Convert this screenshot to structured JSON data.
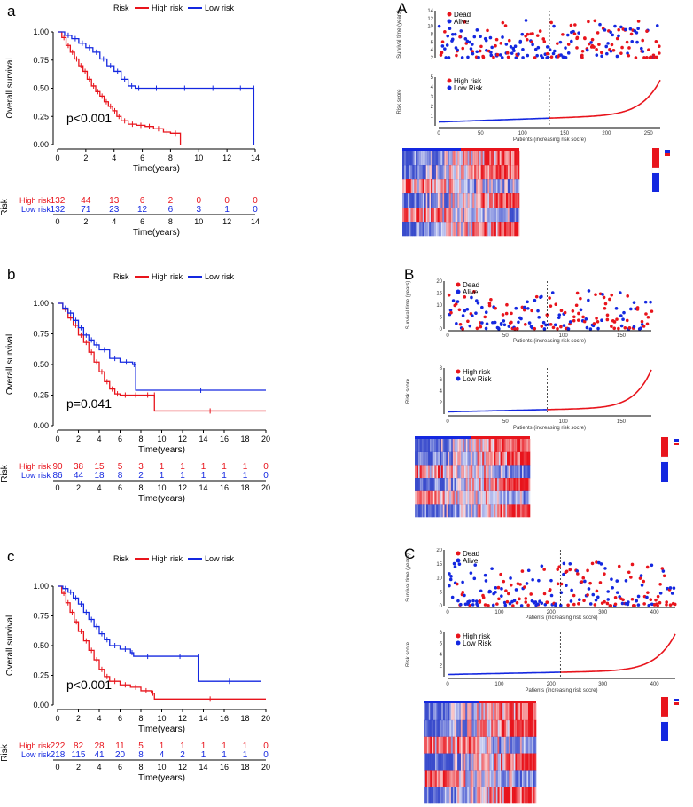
{
  "panels": {
    "a": "a",
    "b": "b",
    "c": "c",
    "A": "A",
    "B": "B",
    "C": "C"
  },
  "colors": {
    "high": "#e8141c",
    "low": "#1428e0",
    "black": "#000000"
  },
  "chart_data": [
    {
      "id": "km_a",
      "type": "line",
      "legend_title": "Risk",
      "legend": [
        "High risk",
        "Low risk"
      ],
      "xlabel": "Time(years)",
      "ylabel": "Overall survival",
      "xlim": [
        0,
        14
      ],
      "ylim": [
        0,
        1
      ],
      "xticks": [
        0,
        2,
        4,
        6,
        8,
        10,
        12,
        14
      ],
      "yticks": [
        "0.00",
        "0.25",
        "0.50",
        "0.75",
        "1.00"
      ],
      "pvalue": "p<0.001",
      "series": [
        {
          "name": "High risk",
          "color": "high",
          "x": [
            0,
            0.3,
            0.6,
            0.9,
            1.2,
            1.5,
            1.8,
            2.1,
            2.4,
            2.7,
            3.0,
            3.3,
            3.6,
            3.9,
            4.2,
            4.5,
            5.0,
            5.6,
            6.2,
            6.8,
            7.5,
            8.0,
            8.7
          ],
          "y": [
            1.0,
            0.95,
            0.88,
            0.82,
            0.76,
            0.7,
            0.65,
            0.58,
            0.52,
            0.47,
            0.43,
            0.38,
            0.34,
            0.3,
            0.25,
            0.21,
            0.18,
            0.17,
            0.16,
            0.14,
            0.11,
            0.1,
            0.0
          ]
        },
        {
          "name": "Low risk",
          "color": "low",
          "x": [
            0,
            0.5,
            1.0,
            1.5,
            2.0,
            2.5,
            3.0,
            3.5,
            4.0,
            4.5,
            5.0,
            5.5,
            6.0,
            8.0,
            10.0,
            12.0,
            13.9,
            13.9
          ],
          "y": [
            1.0,
            0.97,
            0.94,
            0.9,
            0.86,
            0.82,
            0.76,
            0.7,
            0.65,
            0.58,
            0.52,
            0.5,
            0.5,
            0.5,
            0.5,
            0.5,
            0.5,
            0.0
          ]
        }
      ],
      "risk_table": {
        "label": "Risk",
        "xlabel": "Time(years)",
        "rows": [
          {
            "name": "High risk",
            "values": [
              "132",
              "44",
              "13",
              "6",
              "2",
              "0",
              "0",
              "0"
            ]
          },
          {
            "name": "Low risk",
            "values": [
              "132",
              "71",
              "23",
              "12",
              "6",
              "3",
              "1",
              "0"
            ]
          }
        ]
      }
    },
    {
      "id": "km_b",
      "type": "line",
      "legend_title": "Risk",
      "legend": [
        "High risk",
        "Low risk"
      ],
      "xlabel": "Time(years)",
      "ylabel": "Overall survival",
      "xlim": [
        0,
        20
      ],
      "ylim": [
        0,
        1
      ],
      "xticks": [
        0,
        2,
        4,
        6,
        8,
        10,
        12,
        14,
        16,
        18,
        20
      ],
      "yticks": [
        "0.00",
        "0.25",
        "0.50",
        "0.75",
        "1.00"
      ],
      "pvalue": "p=0.041",
      "series": [
        {
          "name": "High risk",
          "color": "high",
          "x": [
            0,
            0.5,
            1.0,
            1.5,
            2.0,
            2.5,
            3.0,
            3.5,
            4.0,
            4.5,
            5.0,
            5.5,
            6.0,
            7.0,
            8.0,
            9.3,
            9.3,
            20.0
          ],
          "y": [
            1.0,
            0.95,
            0.88,
            0.82,
            0.74,
            0.68,
            0.6,
            0.52,
            0.44,
            0.36,
            0.3,
            0.26,
            0.25,
            0.25,
            0.25,
            0.25,
            0.12,
            0.12
          ]
        },
        {
          "name": "Low risk",
          "color": "low",
          "x": [
            0,
            0.5,
            1.0,
            1.5,
            2.0,
            2.5,
            3.0,
            3.5,
            4.0,
            5.0,
            6.0,
            7.2,
            7.5,
            7.5,
            20.0
          ],
          "y": [
            1.0,
            0.96,
            0.92,
            0.86,
            0.8,
            0.74,
            0.7,
            0.66,
            0.62,
            0.55,
            0.52,
            0.5,
            0.5,
            0.29,
            0.29
          ]
        }
      ],
      "risk_table": {
        "label": "Risk",
        "xlabel": "Time(years)",
        "rows": [
          {
            "name": "High risk",
            "values": [
              "90",
              "38",
              "15",
              "5",
              "3",
              "1",
              "1",
              "1",
              "1",
              "1",
              "0"
            ]
          },
          {
            "name": "Low risk",
            "values": [
              "86",
              "44",
              "18",
              "8",
              "2",
              "1",
              "1",
              "1",
              "1",
              "1",
              "0"
            ]
          }
        ]
      }
    },
    {
      "id": "km_c",
      "type": "line",
      "legend_title": "Risk",
      "legend": [
        "High risk",
        "Low risk"
      ],
      "xlabel": "Time(years)",
      "ylabel": "Overall survival",
      "xlim": [
        0,
        20
      ],
      "ylim": [
        0,
        1
      ],
      "xticks": [
        0,
        2,
        4,
        6,
        8,
        10,
        12,
        14,
        16,
        18,
        20
      ],
      "yticks": [
        "0.00",
        "0.25",
        "0.50",
        "0.75",
        "1.00"
      ],
      "pvalue": "p<0.001",
      "series": [
        {
          "name": "High risk",
          "color": "high",
          "x": [
            0,
            0.4,
            0.8,
            1.2,
            1.6,
            2.0,
            2.5,
            3.0,
            3.5,
            4.0,
            4.5,
            5.0,
            6.0,
            7.0,
            8.0,
            9.0,
            9.3,
            20.0
          ],
          "y": [
            1.0,
            0.94,
            0.86,
            0.78,
            0.7,
            0.62,
            0.54,
            0.46,
            0.38,
            0.3,
            0.24,
            0.2,
            0.17,
            0.15,
            0.12,
            0.1,
            0.05,
            0.05
          ]
        },
        {
          "name": "Low risk",
          "color": "low",
          "x": [
            0,
            0.5,
            1.0,
            1.5,
            2.0,
            2.5,
            3.0,
            3.5,
            4.0,
            4.5,
            5.0,
            6.0,
            7.0,
            7.3,
            10.0,
            13.5,
            13.5,
            19.5
          ],
          "y": [
            1.0,
            0.98,
            0.95,
            0.9,
            0.85,
            0.78,
            0.72,
            0.66,
            0.6,
            0.55,
            0.5,
            0.47,
            0.44,
            0.41,
            0.41,
            0.41,
            0.2,
            0.2
          ]
        }
      ],
      "risk_table": {
        "label": "Risk",
        "xlabel": "Time(years)",
        "rows": [
          {
            "name": "High risk",
            "values": [
              "222",
              "82",
              "28",
              "11",
              "5",
              "1",
              "1",
              "1",
              "1",
              "1",
              "0"
            ]
          },
          {
            "name": "Low risk",
            "values": [
              "218",
              "115",
              "41",
              "20",
              "8",
              "4",
              "2",
              "1",
              "1",
              "1",
              "0"
            ]
          }
        ]
      }
    },
    {
      "id": "risk_A",
      "type": "scatter",
      "status_legend": [
        "Dead",
        "Alive"
      ],
      "status_ylabel": "Survival time (years)",
      "score_legend": [
        "High risk",
        "Low Risk"
      ],
      "score_ylabel": "Risk score",
      "score_xticks": [
        0,
        50,
        100,
        150,
        200,
        250
      ],
      "xlabel": "Patients (increasing risk socre)",
      "n": 264,
      "cutoff": 132,
      "status_yticks": [
        2,
        4,
        6,
        8,
        10,
        12,
        14
      ],
      "score_yticks": [
        1,
        2,
        3,
        4,
        5
      ]
    },
    {
      "id": "risk_B",
      "type": "scatter",
      "status_legend": [
        "Dead",
        "Alive"
      ],
      "status_ylabel": "Survival time (years)",
      "status_xticks": [
        0,
        50,
        100,
        150
      ],
      "score_legend": [
        "High risk",
        "Low Risk"
      ],
      "score_ylabel": "Risk score",
      "score_xticks": [
        0,
        50,
        100,
        150
      ],
      "xlabel": "Patients (increasing risk socre)",
      "n": 176,
      "cutoff": 86,
      "status_yticks": [
        0,
        5,
        10,
        15,
        20
      ],
      "score_yticks": [
        2,
        4,
        6,
        8
      ]
    },
    {
      "id": "risk_C",
      "type": "scatter",
      "status_legend": [
        "Dead",
        "Alive"
      ],
      "status_ylabel": "Survival time (years)",
      "status_xticks": [
        0,
        100,
        200,
        300,
        400
      ],
      "score_legend": [
        "High risk",
        "Low Risk"
      ],
      "score_ylabel": "Risk score",
      "score_xticks": [
        0,
        100,
        200,
        300,
        400
      ],
      "xlabel": "Patients (increasing risk socre)",
      "n": 440,
      "cutoff": 218,
      "status_yticks": [
        0,
        5,
        10,
        15,
        20
      ],
      "score_yticks": [
        2,
        4,
        6,
        8
      ]
    }
  ]
}
